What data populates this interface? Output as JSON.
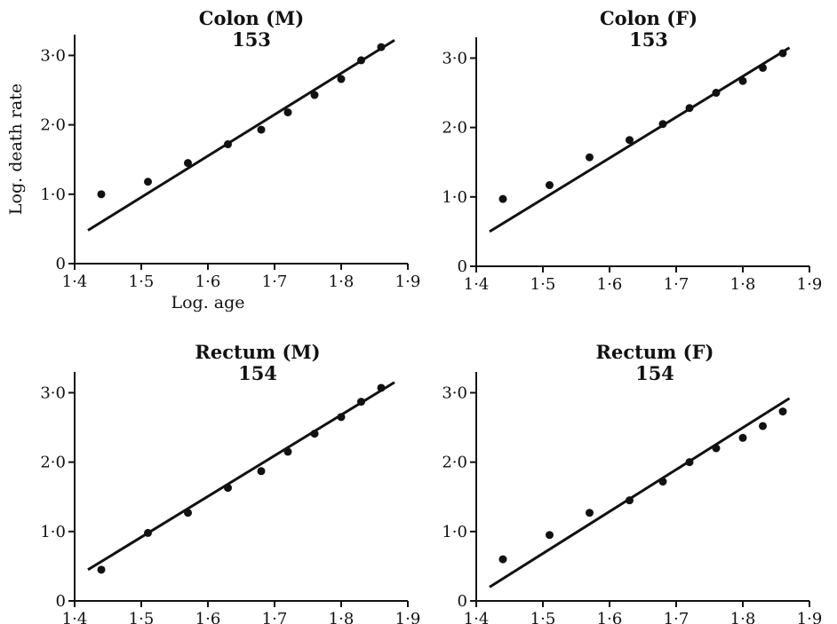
{
  "chart_data": [
    {
      "type": "scatter",
      "title": "Colon (M)",
      "subtitle": "153",
      "xlabel": "Log. age",
      "ylabel": "Log. death rate",
      "xlim": [
        1.4,
        1.9
      ],
      "ylim": [
        0,
        3.3
      ],
      "xticks": [
        "1·4",
        "1·5",
        "1·6",
        "1·7",
        "1·8",
        "1·9"
      ],
      "yticks": [
        "0",
        "1·0",
        "2·0",
        "3·0"
      ],
      "points": {
        "x": [
          1.44,
          1.51,
          1.57,
          1.63,
          1.68,
          1.72,
          1.76,
          1.8,
          1.83,
          1.86
        ],
        "y": [
          1.0,
          1.18,
          1.45,
          1.72,
          1.93,
          2.18,
          2.43,
          2.66,
          2.93,
          3.12
        ]
      },
      "fit_line": {
        "x": [
          1.42,
          1.88
        ],
        "y": [
          0.48,
          3.22
        ]
      }
    },
    {
      "type": "scatter",
      "title": "Colon (F)",
      "subtitle": "153",
      "xlabel": "",
      "ylabel": "",
      "xlim": [
        1.4,
        1.9
      ],
      "ylim": [
        0,
        3.3
      ],
      "xticks": [
        "1·4",
        "1·5",
        "1·6",
        "1·7",
        "1·8",
        "1·9"
      ],
      "yticks": [
        "0",
        "1·0",
        "2·0",
        "3·0"
      ],
      "points": {
        "x": [
          1.44,
          1.51,
          1.57,
          1.63,
          1.68,
          1.72,
          1.76,
          1.8,
          1.83,
          1.86
        ],
        "y": [
          0.97,
          1.17,
          1.57,
          1.82,
          2.05,
          2.28,
          2.5,
          2.67,
          2.86,
          3.07
        ]
      },
      "fit_line": {
        "x": [
          1.42,
          1.87
        ],
        "y": [
          0.5,
          3.15
        ]
      }
    },
    {
      "type": "scatter",
      "title": "Rectum (M)",
      "subtitle": "154",
      "xlabel": "",
      "ylabel": "",
      "xlim": [
        1.4,
        1.9
      ],
      "ylim": [
        0,
        3.3
      ],
      "xticks": [
        "1·4",
        "1·5",
        "1·6",
        "1·7",
        "1·8",
        "1·9"
      ],
      "yticks": [
        "0",
        "1·0",
        "2·0",
        "3·0"
      ],
      "points": {
        "x": [
          1.44,
          1.51,
          1.57,
          1.63,
          1.68,
          1.72,
          1.76,
          1.8,
          1.83,
          1.86
        ],
        "y": [
          0.45,
          0.98,
          1.27,
          1.63,
          1.87,
          2.15,
          2.41,
          2.65,
          2.87,
          3.07
        ]
      },
      "fit_line": {
        "x": [
          1.42,
          1.88
        ],
        "y": [
          0.45,
          3.15
        ]
      }
    },
    {
      "type": "scatter",
      "title": "Rectum (F)",
      "subtitle": "154",
      "xlabel": "",
      "ylabel": "",
      "xlim": [
        1.4,
        1.9
      ],
      "ylim": [
        0,
        3.3
      ],
      "xticks": [
        "1·4",
        "1·5",
        "1·6",
        "1·7",
        "1·8",
        "1·9"
      ],
      "yticks": [
        "0",
        "1·0",
        "2·0",
        "3·0"
      ],
      "points": {
        "x": [
          1.44,
          1.51,
          1.57,
          1.63,
          1.68,
          1.72,
          1.76,
          1.8,
          1.83,
          1.86
        ],
        "y": [
          0.6,
          0.95,
          1.27,
          1.45,
          1.72,
          2.0,
          2.2,
          2.35,
          2.52,
          2.73
        ]
      },
      "fit_line": {
        "x": [
          1.42,
          1.87
        ],
        "y": [
          0.2,
          2.92
        ]
      }
    }
  ]
}
